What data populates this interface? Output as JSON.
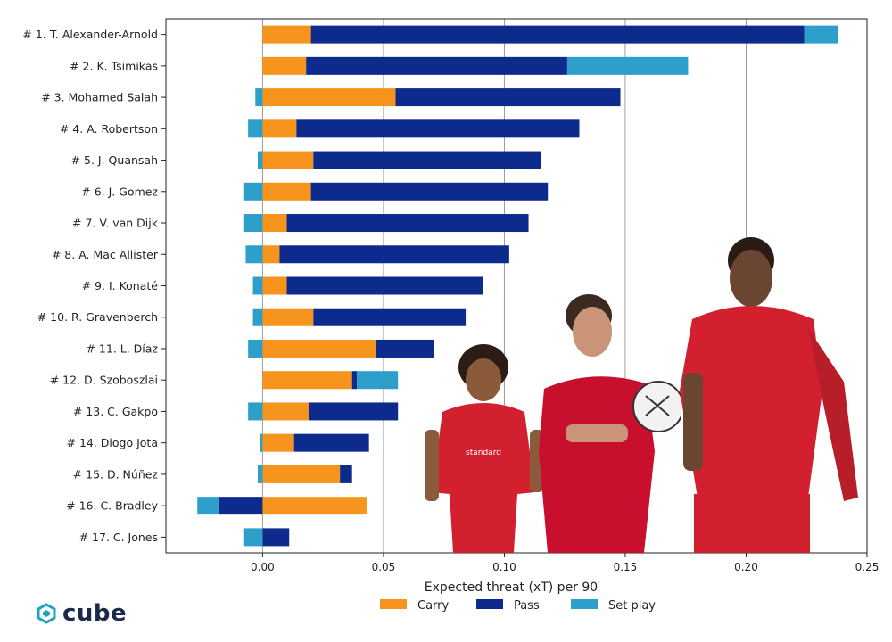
{
  "chart_data": {
    "type": "bar",
    "orientation": "horizontal",
    "stacked": true,
    "xlabel": "Expected threat (xT) per 90",
    "xlim": [
      -0.04,
      0.25
    ],
    "xticks": [
      "0.00",
      "0.05",
      "0.10",
      "0.15",
      "0.20",
      "0.25"
    ],
    "xtick_values": [
      0,
      0.05,
      0.1,
      0.15,
      0.2,
      0.25
    ],
    "grid": "vertical",
    "legend_position": "bottom-center",
    "categories": [
      "# 1.  T. Alexander-Arnold",
      "# 2.  K. Tsimikas",
      "# 3.  Mohamed Salah",
      "# 4.  A. Robertson",
      "# 5.  J. Quansah",
      "# 6.  J. Gomez",
      "# 7.  V. van Dijk",
      "# 8.  A. Mac Allister",
      "# 9.  I. Konaté",
      "# 10.  R. Gravenberch",
      "# 11.  L. Díaz",
      "# 12.  D. Szoboszlai",
      "# 13.  C. Gakpo",
      "# 14.  Diogo Jota",
      "# 15.  D. Núñez",
      "# 16.  C. Bradley",
      "# 17.  C. Jones"
    ],
    "series": [
      {
        "name": "Carry",
        "color": "#f7941d",
        "values": [
          0.02,
          0.018,
          0.055,
          0.014,
          0.021,
          0.02,
          0.01,
          0.007,
          0.01,
          0.021,
          0.047,
          0.037,
          0.019,
          0.013,
          0.032,
          0.043,
          0.0
        ]
      },
      {
        "name": "Pass",
        "color": "#0d2b8c",
        "values": [
          0.204,
          0.108,
          0.093,
          0.117,
          0.094,
          0.098,
          0.1,
          0.095,
          0.081,
          0.063,
          0.024,
          0.002,
          0.037,
          0.031,
          0.005,
          -0.018,
          0.011
        ]
      },
      {
        "name": "Set play",
        "color": "#2e9fcb",
        "values": [
          0.014,
          0.05,
          -0.003,
          -0.006,
          -0.002,
          -0.008,
          -0.008,
          -0.007,
          -0.004,
          -0.004,
          -0.006,
          0.017,
          -0.006,
          -0.001,
          -0.002,
          -0.009,
          -0.008
        ]
      }
    ]
  },
  "branding": {
    "logo_text": "cube",
    "logo_icon": "cube-logo-icon",
    "accent_color": "#1aa3c8"
  },
  "images": [
    {
      "name": "player-photo-salah",
      "icon": "player-photo"
    },
    {
      "name": "player-photo-tsimikas",
      "icon": "player-photo"
    },
    {
      "name": "player-photo-alexander-arnold",
      "icon": "player-photo"
    }
  ]
}
